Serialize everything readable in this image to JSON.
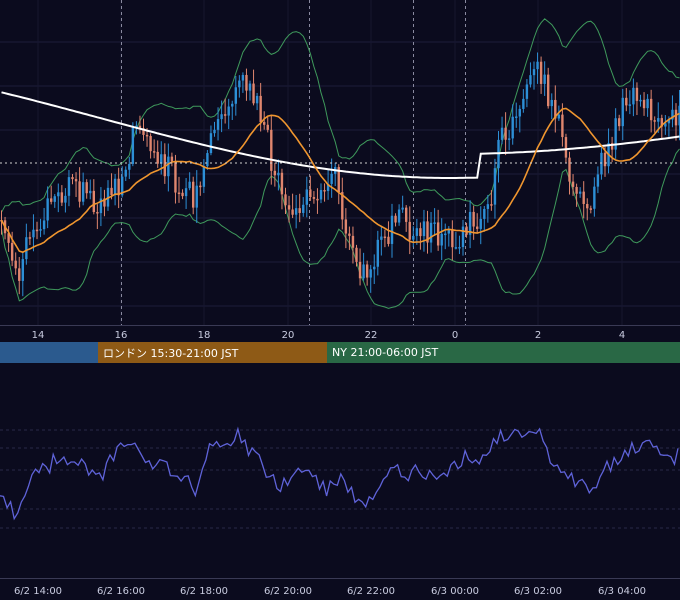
{
  "chart_data": [
    {
      "type": "candlestick",
      "title": "",
      "x_ticks": [
        "14",
        "16",
        "18",
        "20",
        "22",
        "0",
        "2",
        "4"
      ],
      "session_markers": [
        "16",
        "20:30",
        "23",
        "0:30"
      ],
      "candles": [],
      "overlays": [
        {
          "name": "",
          "color": "#ffffff",
          "kind": "moving-average"
        },
        {
          "name": "",
          "color": "#f0962f",
          "kind": "moving-average"
        },
        {
          "name": "",
          "color": "#3f9a5c",
          "kind": "bollinger-band"
        }
      ],
      "colors": {
        "up": "#2d8fd6",
        "down": "#e0866e",
        "dashed_reference": "#d0d0d0"
      },
      "grid": true
    },
    {
      "type": "line",
      "title": "",
      "x_ticks": [
        "6/2 14:00",
        "6/2 16:00",
        "6/2 18:00",
        "6/2 20:00",
        "6/2 22:00",
        "6/3 00:00",
        "6/3 02:00",
        "6/3 04:00"
      ],
      "series": [
        {
          "color": "#5f63d9",
          "values": []
        }
      ],
      "grid": true
    }
  ],
  "sessions": [
    {
      "label": "",
      "color": "#2b5a8e"
    },
    {
      "label": "ロンドン 15:30-21:00 JST",
      "color": "#8e5a16"
    },
    {
      "label": "NY 21:00-06:00 JST",
      "color": "#296845"
    }
  ]
}
